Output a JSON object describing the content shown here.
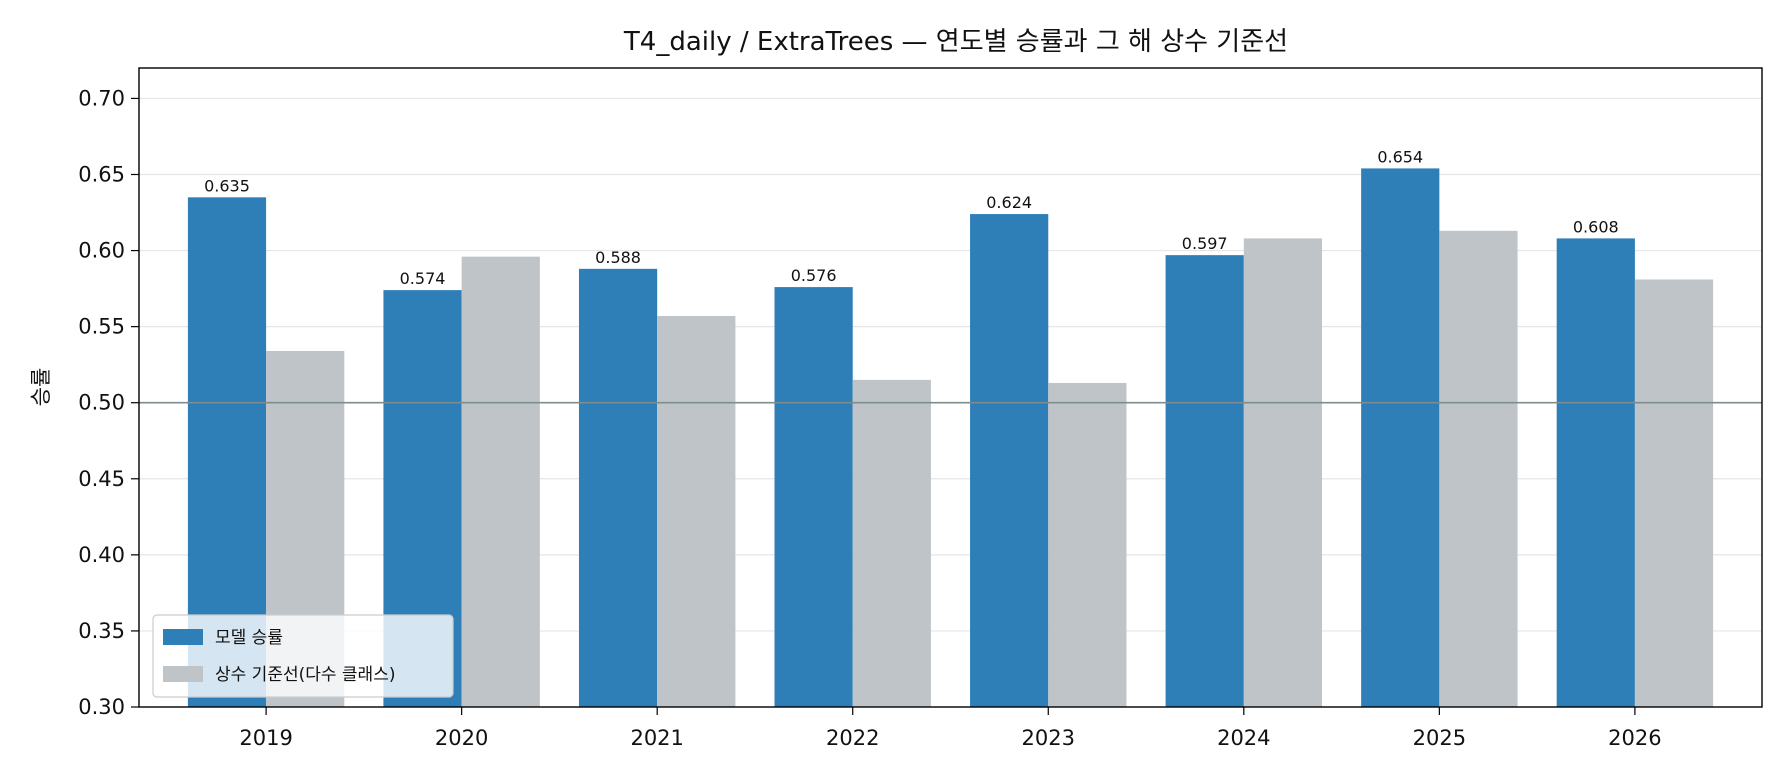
{
  "chart_data": {
    "type": "bar",
    "title": "T4_daily / ExtraTrees — 연도별 승률과 그 해 상수 기준선",
    "xlabel": "",
    "ylabel": "승률",
    "categories": [
      "2019",
      "2020",
      "2021",
      "2022",
      "2023",
      "2024",
      "2025",
      "2026"
    ],
    "series": [
      {
        "name": "모델 승률",
        "color": "#2e7fb8",
        "values": [
          0.635,
          0.574,
          0.588,
          0.576,
          0.624,
          0.597,
          0.654,
          0.608
        ],
        "show_labels": true
      },
      {
        "name": "상수 기준선(다수 클래스)",
        "color": "#bfc4c8",
        "values": [
          0.534,
          0.596,
          0.557,
          0.515,
          0.513,
          0.608,
          0.613,
          0.581
        ],
        "show_labels": false
      }
    ],
    "value_labels": [
      "0.635",
      "0.574",
      "0.588",
      "0.576",
      "0.624",
      "0.597",
      "0.654",
      "0.608"
    ],
    "ylim": [
      0.3,
      0.72
    ],
    "yticks": [
      "0.30",
      "0.35",
      "0.40",
      "0.45",
      "0.50",
      "0.55",
      "0.60",
      "0.65",
      "0.70"
    ],
    "reference_line": {
      "value": 0.5,
      "color": "#7f8c8d"
    },
    "grid": "horizontal",
    "legend": "lower-left"
  }
}
